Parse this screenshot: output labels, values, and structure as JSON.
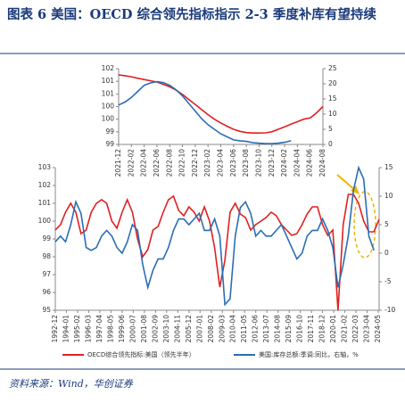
{
  "header": {
    "title": "图表 6   美国：OECD 综合领先指标指示 2-3 季度补库有望持续"
  },
  "source": "资料来源：Wind，华创证券",
  "chart_data": [
    {
      "type": "line",
      "x": [
        "2021-12",
        "2022-01",
        "2022-02",
        "2022-03",
        "2022-04",
        "2022-05",
        "2022-06",
        "2022-07",
        "2022-08",
        "2022-09",
        "2022-10",
        "2022-11",
        "2022-12",
        "2023-01",
        "2023-02",
        "2023-03",
        "2023-04",
        "2023-05",
        "2023-06",
        "2023-07",
        "2023-08",
        "2023-09",
        "2023-10",
        "2023-11",
        "2023-12",
        "2024-01",
        "2024-02",
        "2024-03",
        "2024-04",
        "2024-05",
        "2024-06",
        "2024-07",
        "2024-08"
      ],
      "xticks": [
        "2021-12",
        "2022-02",
        "2022-04",
        "2022-06",
        "2022-08",
        "2022-10",
        "2022-12",
        "2023-02",
        "2023-04",
        "2023-06",
        "2023-08",
        "2023-10",
        "2023-12",
        "2024-02",
        "2024-04",
        "2024-06",
        "2024-08"
      ],
      "ylim": [
        99,
        102
      ],
      "yticks": [
        99,
        {
          "value": 99.5,
          "label": "99"
        },
        100,
        {
          "value": 100.5,
          "label": "100"
        },
        101,
        {
          "value": 101.5,
          "label": "101"
        },
        102
      ],
      "y2lim": [
        0,
        25
      ],
      "y2ticks": [
        0,
        5,
        10,
        15,
        20,
        25
      ],
      "series": [
        {
          "name": "OECD综合领先指标:美国（领先半年）",
          "color": "#e02020",
          "values": [
            101.75,
            101.72,
            101.68,
            101.62,
            101.57,
            101.52,
            101.47,
            101.38,
            101.28,
            101.15,
            100.98,
            100.78,
            100.58,
            100.38,
            100.18,
            100.0,
            99.85,
            99.72,
            99.6,
            99.52,
            99.47,
            99.45,
            99.45,
            99.46,
            99.5,
            99.6,
            99.7,
            99.8,
            99.9,
            100.0,
            100.05,
            100.25,
            100.5
          ]
        },
        {
          "name": "美国:库存总额:季调:同比，右轴，%",
          "color": "#2a6db5",
          "axis": "y2",
          "values": [
            13,
            14,
            15.5,
            17.5,
            19.5,
            20.3,
            20.7,
            20.4,
            19.5,
            18,
            16,
            13.5,
            11,
            8.5,
            6.5,
            5,
            3.5,
            2.5,
            1.5,
            1.2,
            1,
            0.6,
            0.4,
            0.3,
            0.3,
            0.4,
            0.7,
            1.2,
            null,
            null,
            null,
            null,
            null
          ]
        }
      ]
    },
    {
      "type": "line",
      "x": [
        "1992-12",
        "1993-06",
        "1993-12",
        "1994-06",
        "1994-12",
        "1995-06",
        "1995-12",
        "1996-06",
        "1996-12",
        "1997-06",
        "1997-12",
        "1998-06",
        "1998-12",
        "1999-06",
        "1999-12",
        "2000-06",
        "2000-12",
        "2001-06",
        "2001-12",
        "2002-06",
        "2002-12",
        "2003-06",
        "2003-12",
        "2004-06",
        "2004-12",
        "2005-06",
        "2005-12",
        "2006-06",
        "2006-12",
        "2007-06",
        "2007-12",
        "2008-06",
        "2008-12",
        "2009-06",
        "2009-12",
        "2010-06",
        "2010-12",
        "2011-06",
        "2011-12",
        "2012-06",
        "2012-12",
        "2013-06",
        "2013-12",
        "2014-06",
        "2014-12",
        "2015-06",
        "2015-12",
        "2016-06",
        "2016-12",
        "2017-06",
        "2017-12",
        "2018-06",
        "2018-12",
        "2019-06",
        "2019-12",
        "2020-06",
        "2020-12",
        "2021-06",
        "2021-12",
        "2022-06",
        "2022-12",
        "2023-06",
        "2023-12",
        "2024-06"
      ],
      "xticks": [
        "1992-12",
        "1994-01",
        "1995-02",
        "1996-03",
        "1997-04",
        "1998-05",
        "1999-06",
        "2000-07",
        "2001-08",
        "2002-09",
        "2003-10",
        "2004-11",
        "2005-12",
        "2007-01",
        "2008-02",
        "2009-03",
        "2010-04",
        "2011-05",
        "2012-06",
        "2013-07",
        "2014-08",
        "2015-09",
        "2016-10",
        "2017-11",
        "2018-12",
        "2020-01",
        "2021-02",
        "2022-03",
        "2023-04",
        "2024-05"
      ],
      "ylim": [
        95,
        103
      ],
      "yticks": [
        95,
        96,
        97,
        98,
        99,
        100,
        101,
        102,
        103
      ],
      "y2lim": [
        -10,
        15
      ],
      "y2ticks": [
        -10,
        -5,
        0,
        5,
        10,
        15
      ],
      "series": [
        {
          "name": "OECD综合领先指标:美国（领先半年）",
          "color": "#e02020",
          "values": [
            99.5,
            99.8,
            100.5,
            101,
            100.5,
            99.3,
            99.5,
            100.5,
            101,
            101.2,
            101,
            100,
            99.6,
            100.5,
            101.2,
            100.5,
            99,
            98,
            98.4,
            99.5,
            99.7,
            100.5,
            101.2,
            101.4,
            100.6,
            100.3,
            100.8,
            100.5,
            100,
            100.8,
            100,
            98.5,
            96.3,
            97.8,
            100.5,
            101,
            100.4,
            100.2,
            99.5,
            99.8,
            100,
            100.2,
            100.5,
            100.3,
            99.8,
            99.5,
            99.2,
            99.3,
            99.8,
            100.4,
            100.8,
            100.8,
            99.8,
            99.2,
            99.5,
            95,
            99.8,
            101.5,
            101.5,
            101,
            100,
            99.4,
            99.4,
            100.1
          ]
        },
        {
          "name": "美国:库存总额:季调:同比，右轴，%",
          "color": "#2a6db5",
          "axis": "y2",
          "values": [
            2,
            3,
            2,
            5,
            9,
            7,
            1,
            0.5,
            1,
            3,
            4,
            3,
            1,
            0,
            2,
            5,
            4,
            -2,
            -6,
            -3,
            -1,
            -1,
            1,
            4,
            6,
            6,
            5,
            6,
            7,
            4,
            4,
            6,
            3,
            -9,
            -8,
            3,
            8,
            9,
            7,
            3,
            4,
            3,
            3,
            4,
            5,
            3,
            1,
            -1,
            0,
            3,
            4,
            4,
            6,
            4,
            1,
            -6,
            -2,
            3,
            11,
            15,
            13,
            3,
            0.5,
            null
          ]
        }
      ]
    }
  ]
}
